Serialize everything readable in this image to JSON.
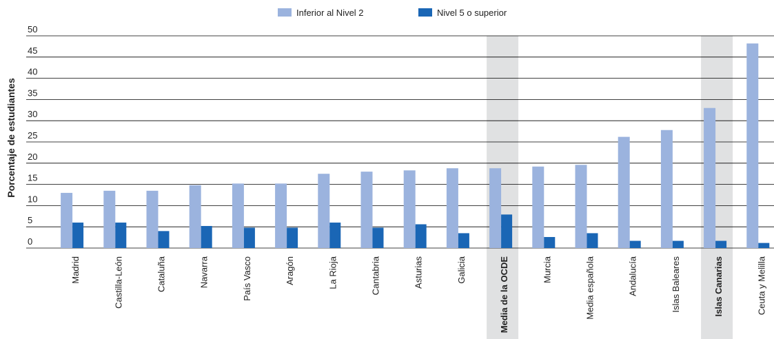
{
  "chart_data": {
    "type": "bar",
    "y_axis_label": "Porcentaje de estudiantes",
    "categories": [
      "Madrid",
      "Castilla-León",
      "Cataluña",
      "Navarra",
      "País Vasco",
      "Aragón",
      "La Rioja",
      "Cantabria",
      "Asturias",
      "Galicia",
      "Media de la OCDE",
      "Murcia",
      "Media española",
      "Andalucía",
      "Islas Baleares",
      "Islas Canarias",
      "Ceuta y Melilla"
    ],
    "series": [
      {
        "name": "Inferior al Nivel 2",
        "color": "#9bb3de",
        "values": [
          13,
          13.5,
          13.5,
          14.8,
          15.2,
          15.2,
          17.5,
          18,
          18.3,
          18.8,
          18.8,
          19.2,
          19.6,
          26.2,
          27.8,
          33,
          48.2
        ]
      },
      {
        "name": "Nivel 5 o superior",
        "color": "#1a66b5",
        "values": [
          6,
          6,
          4,
          5.2,
          4.8,
          4.8,
          6,
          4.8,
          5.6,
          3.5,
          7.9,
          2.6,
          3.5,
          1.7,
          1.7,
          1.7,
          1.2
        ]
      }
    ],
    "ylim": [
      0,
      50
    ],
    "yticks": [
      0,
      5,
      10,
      15,
      20,
      25,
      30,
      35,
      40,
      45,
      50
    ],
    "grid": true,
    "highlight_categories": [
      10,
      15
    ],
    "legend": "top"
  }
}
